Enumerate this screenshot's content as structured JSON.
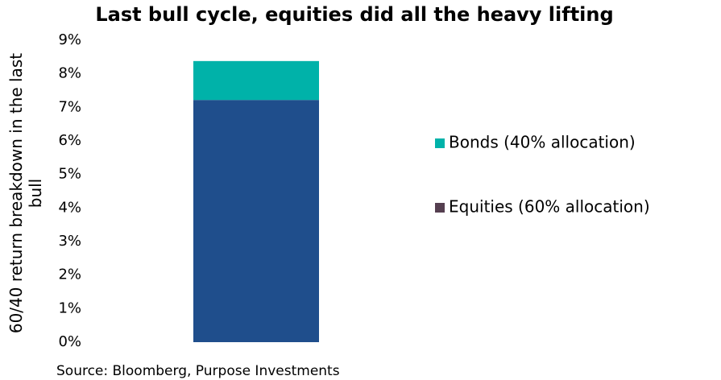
{
  "chart_data": {
    "type": "stacked_bar",
    "title": "Last bull cycle, equities did all the heavy lifting",
    "y_label": "60/40 return breakdown in the last bull",
    "source": "Source: Bloomberg, Purpose Investments",
    "categories": [
      null
    ],
    "series": [
      {
        "name": "Equities (60% allocation)",
        "color": "#1f4e8c",
        "legend_color": "#553f50",
        "values": [
          7.22
        ]
      },
      {
        "name": "Bonds (40% allocation)",
        "color": "#00b2a9",
        "legend_color": "#00b2a9",
        "values": [
          1.16
        ]
      }
    ],
    "ylim": [
      0,
      9
    ],
    "yticks": [
      {
        "value": 0,
        "label": "0%"
      },
      {
        "value": 1,
        "label": "1%"
      },
      {
        "value": 2,
        "label": "2%"
      },
      {
        "value": 3,
        "label": "3%"
      },
      {
        "value": 4,
        "label": "4%"
      },
      {
        "value": 5,
        "label": "5%"
      },
      {
        "value": 6,
        "label": "6%"
      },
      {
        "value": 7,
        "label": "7%"
      },
      {
        "value": 8,
        "label": "8%"
      },
      {
        "value": 9,
        "label": "9%"
      }
    ],
    "grid": false,
    "legend": "right"
  }
}
